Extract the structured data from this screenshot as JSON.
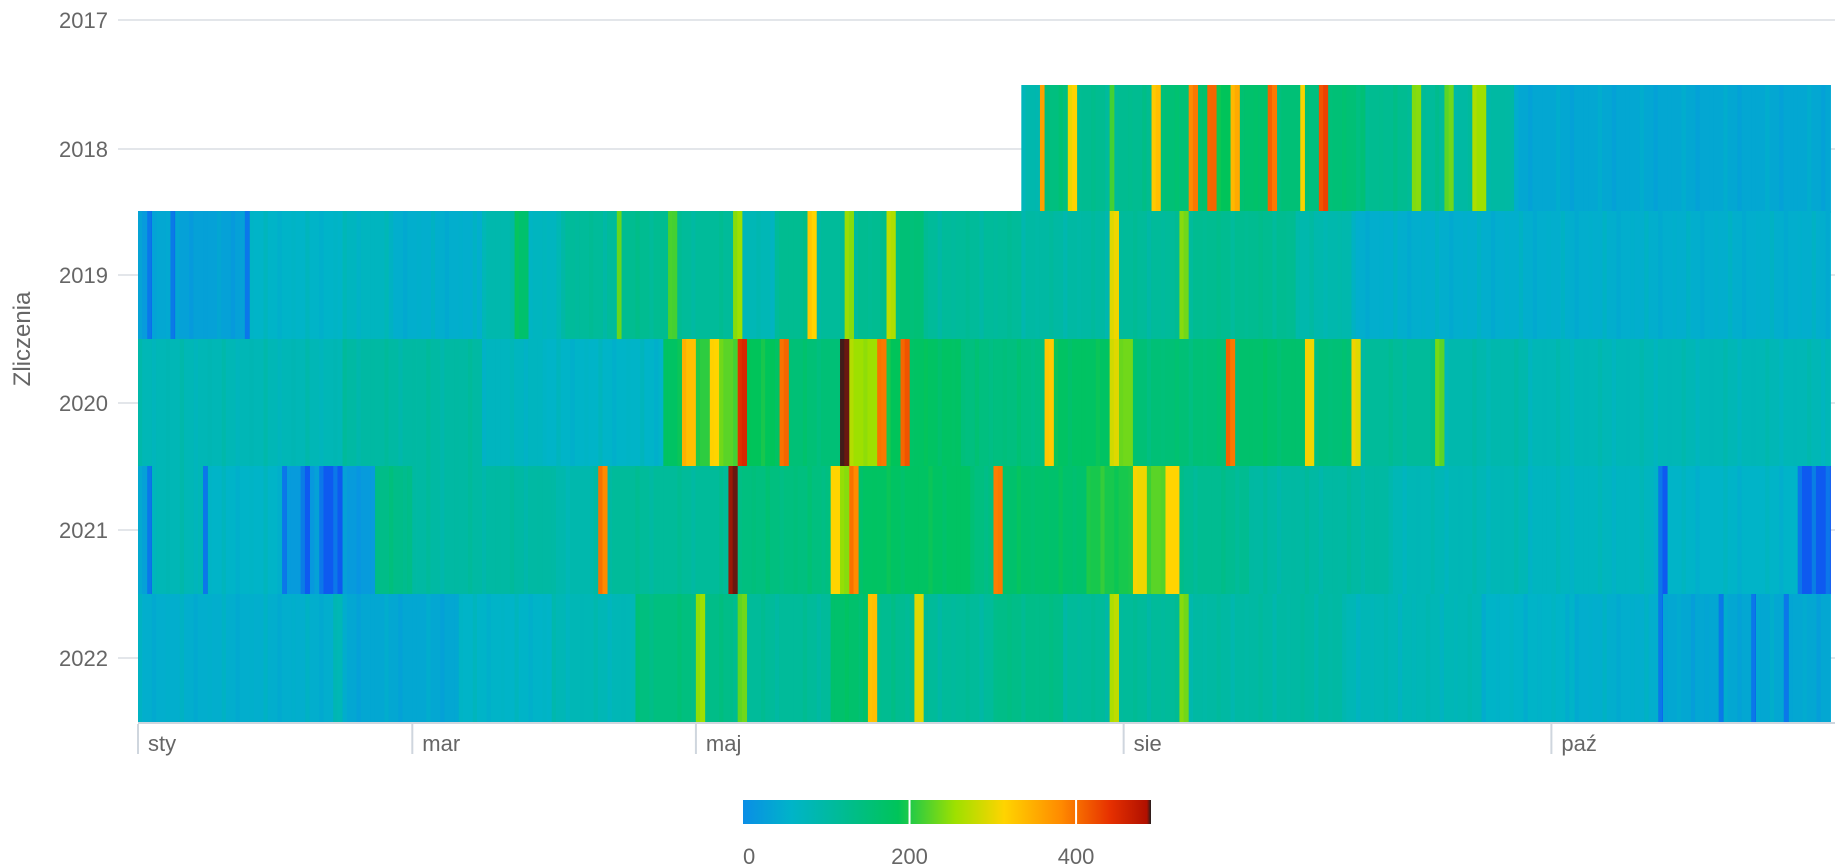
{
  "chart_data": {
    "type": "heatmap",
    "title": "",
    "ylabel": "Zliczenia",
    "xlabel": "",
    "y_categories": [
      "2017",
      "2018",
      "2019",
      "2020",
      "2021",
      "2022"
    ],
    "x_ticks": [
      "sty",
      "mar",
      "maj",
      "sie",
      "paź"
    ],
    "x_domain": "day of year (1-365)",
    "colorbar": {
      "ticks": [
        0,
        200,
        400
      ],
      "range": [
        0,
        490
      ],
      "stops": [
        "#0a8ee6",
        "#00b4c8",
        "#00c45a",
        "#9ee000",
        "#ffd400",
        "#ff8a00",
        "#e63000",
        "#b01000",
        "#202020"
      ]
    },
    "rows": [
      {
        "year": "2017",
        "start_day": null,
        "segments": []
      },
      {
        "year": "2018",
        "start_day": 191,
        "segments": [
          [
            191,
            195,
            90
          ],
          [
            195,
            196,
            360
          ],
          [
            196,
            201,
            140
          ],
          [
            201,
            203,
            310
          ],
          [
            203,
            210,
            120
          ],
          [
            210,
            211,
            220
          ],
          [
            211,
            219,
            120
          ],
          [
            219,
            221,
            330
          ],
          [
            221,
            227,
            150
          ],
          [
            227,
            229,
            390
          ],
          [
            229,
            231,
            160
          ],
          [
            231,
            233,
            400
          ],
          [
            233,
            236,
            180
          ],
          [
            236,
            238,
            350
          ],
          [
            238,
            244,
            160
          ],
          [
            244,
            246,
            390
          ],
          [
            246,
            251,
            150
          ],
          [
            251,
            252,
            300
          ],
          [
            252,
            255,
            140
          ],
          [
            255,
            257,
            420
          ],
          [
            257,
            265,
            150
          ],
          [
            265,
            275,
            120
          ],
          [
            275,
            277,
            240
          ],
          [
            277,
            282,
            110
          ],
          [
            282,
            284,
            230
          ],
          [
            284,
            288,
            100
          ],
          [
            288,
            291,
            250
          ],
          [
            291,
            297,
            100
          ],
          [
            297,
            365,
            40
          ]
        ]
      },
      {
        "year": "2019",
        "start_day": 1,
        "segments": [
          [
            1,
            3,
            20
          ],
          [
            3,
            4,
            0
          ],
          [
            4,
            8,
            40
          ],
          [
            8,
            9,
            0
          ],
          [
            9,
            24,
            30
          ],
          [
            24,
            25,
            0
          ],
          [
            25,
            45,
            60
          ],
          [
            45,
            55,
            70
          ],
          [
            55,
            75,
            50
          ],
          [
            75,
            82,
            90
          ],
          [
            82,
            85,
            160
          ],
          [
            85,
            92,
            70
          ],
          [
            92,
            104,
            110
          ],
          [
            104,
            105,
            230
          ],
          [
            105,
            115,
            120
          ],
          [
            115,
            117,
            210
          ],
          [
            117,
            129,
            110
          ],
          [
            129,
            131,
            250
          ],
          [
            131,
            138,
            80
          ],
          [
            138,
            145,
            120
          ],
          [
            145,
            147,
            310
          ],
          [
            147,
            153,
            110
          ],
          [
            153,
            155,
            240
          ],
          [
            155,
            162,
            120
          ],
          [
            162,
            164,
            260
          ],
          [
            164,
            170,
            150
          ],
          [
            170,
            191,
            110
          ],
          [
            191,
            210,
            100
          ],
          [
            210,
            212,
            300
          ],
          [
            212,
            225,
            110
          ],
          [
            225,
            227,
            230
          ],
          [
            227,
            250,
            120
          ],
          [
            250,
            262,
            90
          ],
          [
            262,
            365,
            50
          ]
        ]
      },
      {
        "year": "2020",
        "start_day": 1,
        "segments": [
          [
            1,
            45,
            80
          ],
          [
            45,
            75,
            100
          ],
          [
            75,
            88,
            70
          ],
          [
            88,
            114,
            60
          ],
          [
            114,
            118,
            170
          ],
          [
            118,
            121,
            330
          ],
          [
            121,
            124,
            200
          ],
          [
            124,
            126,
            310
          ],
          [
            126,
            130,
            220
          ],
          [
            130,
            132,
            440
          ],
          [
            132,
            139,
            180
          ],
          [
            139,
            141,
            400
          ],
          [
            141,
            152,
            150
          ],
          [
            152,
            154,
            480
          ],
          [
            154,
            160,
            250
          ],
          [
            160,
            162,
            390
          ],
          [
            162,
            165,
            180
          ],
          [
            165,
            167,
            410
          ],
          [
            167,
            178,
            170
          ],
          [
            178,
            196,
            140
          ],
          [
            196,
            198,
            320
          ],
          [
            198,
            210,
            170
          ],
          [
            210,
            212,
            290
          ],
          [
            212,
            215,
            230
          ],
          [
            215,
            235,
            150
          ],
          [
            235,
            237,
            390
          ],
          [
            237,
            252,
            160
          ],
          [
            252,
            254,
            300
          ],
          [
            254,
            262,
            150
          ],
          [
            262,
            264,
            290
          ],
          [
            264,
            280,
            110
          ],
          [
            280,
            282,
            220
          ],
          [
            282,
            300,
            90
          ],
          [
            300,
            365,
            80
          ]
        ]
      },
      {
        "year": "2021",
        "start_day": 1,
        "segments": [
          [
            1,
            3,
            30
          ],
          [
            3,
            4,
            0
          ],
          [
            4,
            15,
            80
          ],
          [
            15,
            16,
            0
          ],
          [
            16,
            32,
            60
          ],
          [
            32,
            33,
            0
          ],
          [
            33,
            36,
            20
          ],
          [
            36,
            38,
            0
          ],
          [
            38,
            40,
            30
          ],
          [
            40,
            45,
            0
          ],
          [
            45,
            52,
            20
          ],
          [
            52,
            60,
            130
          ],
          [
            60,
            90,
            100
          ],
          [
            90,
            100,
            90
          ],
          [
            100,
            102,
            380
          ],
          [
            102,
            128,
            110
          ],
          [
            128,
            130,
            480
          ],
          [
            130,
            150,
            140
          ],
          [
            150,
            152,
            310
          ],
          [
            152,
            154,
            240
          ],
          [
            154,
            156,
            380
          ],
          [
            156,
            180,
            170
          ],
          [
            180,
            185,
            140
          ],
          [
            185,
            187,
            390
          ],
          [
            187,
            205,
            160
          ],
          [
            205,
            215,
            190
          ],
          [
            215,
            218,
            300
          ],
          [
            218,
            222,
            220
          ],
          [
            222,
            225,
            310
          ],
          [
            225,
            240,
            120
          ],
          [
            240,
            270,
            100
          ],
          [
            270,
            300,
            80
          ],
          [
            300,
            328,
            70
          ],
          [
            328,
            330,
            0
          ],
          [
            330,
            358,
            60
          ],
          [
            358,
            365,
            0
          ]
        ]
      },
      {
        "year": "2022",
        "start_day": 1,
        "segments": [
          [
            1,
            43,
            50
          ],
          [
            43,
            45,
            80
          ],
          [
            45,
            70,
            40
          ],
          [
            70,
            90,
            60
          ],
          [
            90,
            108,
            80
          ],
          [
            108,
            121,
            140
          ],
          [
            121,
            123,
            250
          ],
          [
            123,
            130,
            130
          ],
          [
            130,
            132,
            230
          ],
          [
            132,
            150,
            110
          ],
          [
            150,
            158,
            160
          ],
          [
            158,
            160,
            330
          ],
          [
            160,
            168,
            120
          ],
          [
            168,
            170,
            290
          ],
          [
            170,
            185,
            110
          ],
          [
            185,
            200,
            130
          ],
          [
            200,
            210,
            110
          ],
          [
            210,
            212,
            270
          ],
          [
            212,
            225,
            110
          ],
          [
            225,
            227,
            230
          ],
          [
            227,
            260,
            100
          ],
          [
            260,
            290,
            80
          ],
          [
            290,
            310,
            60
          ],
          [
            310,
            328,
            50
          ],
          [
            328,
            329,
            0
          ],
          [
            329,
            341,
            40
          ],
          [
            341,
            342,
            0
          ],
          [
            342,
            348,
            40
          ],
          [
            348,
            349,
            0
          ],
          [
            349,
            355,
            40
          ],
          [
            355,
            356,
            0
          ],
          [
            356,
            365,
            40
          ]
        ]
      }
    ]
  }
}
